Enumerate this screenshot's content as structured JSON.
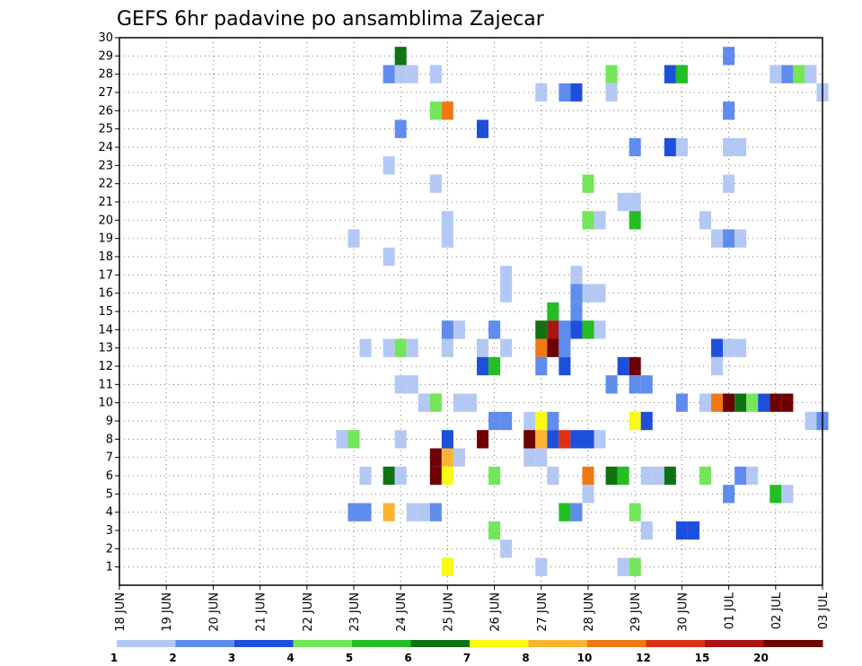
{
  "chart_data": {
    "type": "heatmap",
    "title": "GEFS 6hr padavine po ansamblima Zajecar",
    "xlabel": "",
    "ylabel": "",
    "x_ticks": [
      "18 JUN",
      "19 JUN",
      "20 JUN",
      "21 JUN",
      "22 JUN",
      "23 JUN",
      "24 JUN",
      "25 JUN",
      "26 JUN",
      "27 JUN",
      "28 JUN",
      "29 JUN",
      "30 JUN",
      "01 JUL",
      "02 JUL",
      "03 JUL"
    ],
    "x_unit": "6h steps from 18 JUN 00z",
    "xlim": [
      0,
      60
    ],
    "y_ticks": [
      1,
      2,
      3,
      4,
      5,
      6,
      7,
      8,
      9,
      10,
      11,
      12,
      13,
      14,
      15,
      16,
      17,
      18,
      19,
      20,
      21,
      22,
      23,
      24,
      25,
      26,
      27,
      28,
      29,
      30
    ],
    "ylim": [
      0,
      30
    ],
    "grid": true,
    "colorbar": {
      "labels": [
        "1",
        "2",
        "3",
        "4",
        "5",
        "6",
        "7",
        "8",
        "10",
        "12",
        "15",
        "20"
      ],
      "colors": [
        "#b4c8f5",
        "#5f8ced",
        "#1e4fdc",
        "#73e65a",
        "#23be23",
        "#0f7314",
        "#fafa14",
        "#fab432",
        "#f07814",
        "#dc3214",
        "#aa1414",
        "#6e0000"
      ]
    },
    "cells": [
      [
        24,
        29,
        5
      ],
      [
        52,
        29,
        1
      ],
      [
        23,
        28,
        1
      ],
      [
        24,
        28,
        0
      ],
      [
        25,
        28,
        0
      ],
      [
        27,
        28,
        0
      ],
      [
        42,
        28,
        3
      ],
      [
        47,
        28,
        2
      ],
      [
        48,
        28,
        4
      ],
      [
        56,
        28,
        0
      ],
      [
        57,
        28,
        1
      ],
      [
        58,
        28,
        3
      ],
      [
        59,
        28,
        0
      ],
      [
        36,
        27,
        0
      ],
      [
        38,
        27,
        1
      ],
      [
        39,
        27,
        2
      ],
      [
        42,
        27,
        0
      ],
      [
        60,
        27,
        0
      ],
      [
        27,
        26,
        3
      ],
      [
        28,
        26,
        8
      ],
      [
        52,
        26,
        1
      ],
      [
        24,
        25,
        1
      ],
      [
        31,
        25,
        2
      ],
      [
        44,
        24,
        1
      ],
      [
        47,
        24,
        2
      ],
      [
        48,
        24,
        0
      ],
      [
        52,
        24,
        0
      ],
      [
        53,
        24,
        0
      ],
      [
        23,
        23,
        0
      ],
      [
        27,
        22,
        0
      ],
      [
        40,
        22,
        3
      ],
      [
        52,
        22,
        0
      ],
      [
        43,
        21,
        0
      ],
      [
        44,
        21,
        0
      ],
      [
        28,
        20,
        0
      ],
      [
        40,
        20,
        3
      ],
      [
        41,
        20,
        0
      ],
      [
        44,
        20,
        4
      ],
      [
        50,
        20,
        0
      ],
      [
        20,
        19,
        0
      ],
      [
        28,
        19,
        0
      ],
      [
        51,
        19,
        0
      ],
      [
        52,
        19,
        1
      ],
      [
        53,
        19,
        0
      ],
      [
        23,
        18,
        0
      ],
      [
        33,
        17,
        0
      ],
      [
        39,
        17,
        0
      ],
      [
        33,
        16,
        0
      ],
      [
        39,
        16,
        1
      ],
      [
        40,
        16,
        0
      ],
      [
        41,
        16,
        0
      ],
      [
        37,
        15,
        4
      ],
      [
        39,
        15,
        1
      ],
      [
        28,
        14,
        1
      ],
      [
        29,
        14,
        0
      ],
      [
        32,
        14,
        1
      ],
      [
        36,
        14,
        5
      ],
      [
        37,
        14,
        10
      ],
      [
        38,
        14,
        1
      ],
      [
        39,
        14,
        2
      ],
      [
        40,
        14,
        4
      ],
      [
        41,
        14,
        0
      ],
      [
        21,
        13,
        0
      ],
      [
        23,
        13,
        0
      ],
      [
        24,
        13,
        3
      ],
      [
        25,
        13,
        0
      ],
      [
        28,
        13,
        0
      ],
      [
        31,
        13,
        0
      ],
      [
        33,
        13,
        0
      ],
      [
        36,
        13,
        8
      ],
      [
        37,
        13,
        11
      ],
      [
        38,
        13,
        1
      ],
      [
        51,
        13,
        2
      ],
      [
        52,
        13,
        0
      ],
      [
        53,
        13,
        0
      ],
      [
        31,
        12,
        2
      ],
      [
        32,
        12,
        4
      ],
      [
        36,
        12,
        1
      ],
      [
        38,
        12,
        2
      ],
      [
        43,
        12,
        2
      ],
      [
        44,
        12,
        11
      ],
      [
        51,
        12,
        0
      ],
      [
        24,
        11,
        0
      ],
      [
        25,
        11,
        0
      ],
      [
        42,
        11,
        1
      ],
      [
        44,
        11,
        1
      ],
      [
        45,
        11,
        1
      ],
      [
        26,
        10,
        0
      ],
      [
        27,
        10,
        3
      ],
      [
        29,
        10,
        0
      ],
      [
        30,
        10,
        0
      ],
      [
        48,
        10,
        1
      ],
      [
        50,
        10,
        0
      ],
      [
        51,
        10,
        8
      ],
      [
        52,
        10,
        11
      ],
      [
        53,
        10,
        5
      ],
      [
        54,
        10,
        3
      ],
      [
        55,
        10,
        2
      ],
      [
        56,
        10,
        11
      ],
      [
        57,
        10,
        11
      ],
      [
        32,
        9,
        1
      ],
      [
        33,
        9,
        1
      ],
      [
        35,
        9,
        0
      ],
      [
        36,
        9,
        6
      ],
      [
        37,
        9,
        1
      ],
      [
        44,
        9,
        6
      ],
      [
        45,
        9,
        2
      ],
      [
        59,
        9,
        0
      ],
      [
        60,
        9,
        1
      ],
      [
        19,
        8,
        0
      ],
      [
        20,
        8,
        3
      ],
      [
        24,
        8,
        0
      ],
      [
        28,
        8,
        2
      ],
      [
        31,
        8,
        11
      ],
      [
        35,
        8,
        11
      ],
      [
        36,
        8,
        7
      ],
      [
        37,
        8,
        2
      ],
      [
        38,
        8,
        9
      ],
      [
        39,
        8,
        2
      ],
      [
        40,
        8,
        2
      ],
      [
        41,
        8,
        0
      ],
      [
        27,
        7,
        11
      ],
      [
        28,
        7,
        7
      ],
      [
        29,
        7,
        0
      ],
      [
        35,
        7,
        0
      ],
      [
        36,
        7,
        0
      ],
      [
        21,
        6,
        0
      ],
      [
        23,
        6,
        5
      ],
      [
        24,
        6,
        0
      ],
      [
        27,
        6,
        11
      ],
      [
        28,
        6,
        6
      ],
      [
        32,
        6,
        3
      ],
      [
        37,
        6,
        0
      ],
      [
        40,
        6,
        8
      ],
      [
        42,
        6,
        5
      ],
      [
        43,
        6,
        4
      ],
      [
        45,
        6,
        0
      ],
      [
        46,
        6,
        0
      ],
      [
        47,
        6,
        5
      ],
      [
        50,
        6,
        3
      ],
      [
        53,
        6,
        1
      ],
      [
        54,
        6,
        0
      ],
      [
        40,
        5,
        0
      ],
      [
        52,
        5,
        1
      ],
      [
        56,
        5,
        4
      ],
      [
        57,
        5,
        0
      ],
      [
        20,
        4,
        1
      ],
      [
        21,
        4,
        1
      ],
      [
        23,
        4,
        7
      ],
      [
        25,
        4,
        0
      ],
      [
        26,
        4,
        0
      ],
      [
        27,
        4,
        1
      ],
      [
        38,
        4,
        4
      ],
      [
        39,
        4,
        1
      ],
      [
        44,
        4,
        3
      ],
      [
        32,
        3,
        3
      ],
      [
        45,
        3,
        0
      ],
      [
        48,
        3,
        2
      ],
      [
        49,
        3,
        2
      ],
      [
        33,
        2,
        0
      ],
      [
        28,
        1,
        6
      ],
      [
        36,
        1,
        0
      ],
      [
        43,
        1,
        0
      ],
      [
        44,
        1,
        3
      ]
    ]
  }
}
